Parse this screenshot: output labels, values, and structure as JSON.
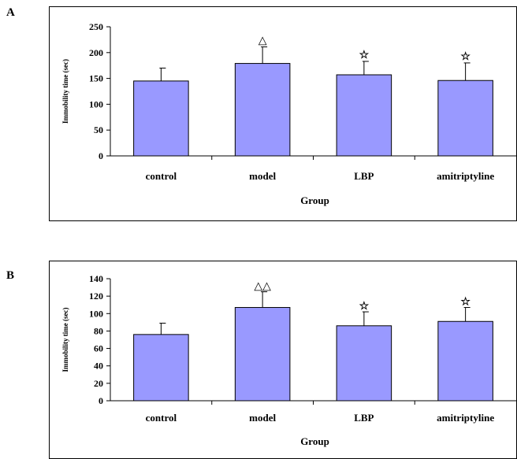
{
  "panels": [
    {
      "letter": "A"
    },
    {
      "letter": "B"
    }
  ],
  "colors": {
    "bar_fill": "#9999ff",
    "bar_stroke": "#000000"
  },
  "chart_data": [
    {
      "type": "bar",
      "panel": "A",
      "categories": [
        "control",
        "model",
        "LBP",
        "amitriptyline"
      ],
      "values": [
        145,
        179,
        157,
        146
      ],
      "errors": [
        25,
        32,
        26,
        34
      ],
      "markers": [
        "",
        "△",
        "☆",
        "☆"
      ],
      "xlabel": "Group",
      "ylabel": "Immobility time (sec)",
      "ylim": [
        0,
        250
      ],
      "yticks": [
        0,
        50,
        100,
        150,
        200,
        250
      ],
      "grid": false,
      "legend": "none"
    },
    {
      "type": "bar",
      "panel": "B",
      "categories": [
        "control",
        "model",
        "LBP",
        "amitriptyline"
      ],
      "values": [
        76,
        107,
        86,
        91
      ],
      "errors": [
        13,
        18,
        16,
        16
      ],
      "markers": [
        "",
        "△△",
        "☆",
        "☆"
      ],
      "xlabel": "Group",
      "ylabel": "Immobility time (sec)",
      "ylim": [
        0,
        140
      ],
      "yticks": [
        0,
        20,
        40,
        60,
        80,
        100,
        120,
        140
      ],
      "grid": false,
      "legend": "none"
    }
  ]
}
